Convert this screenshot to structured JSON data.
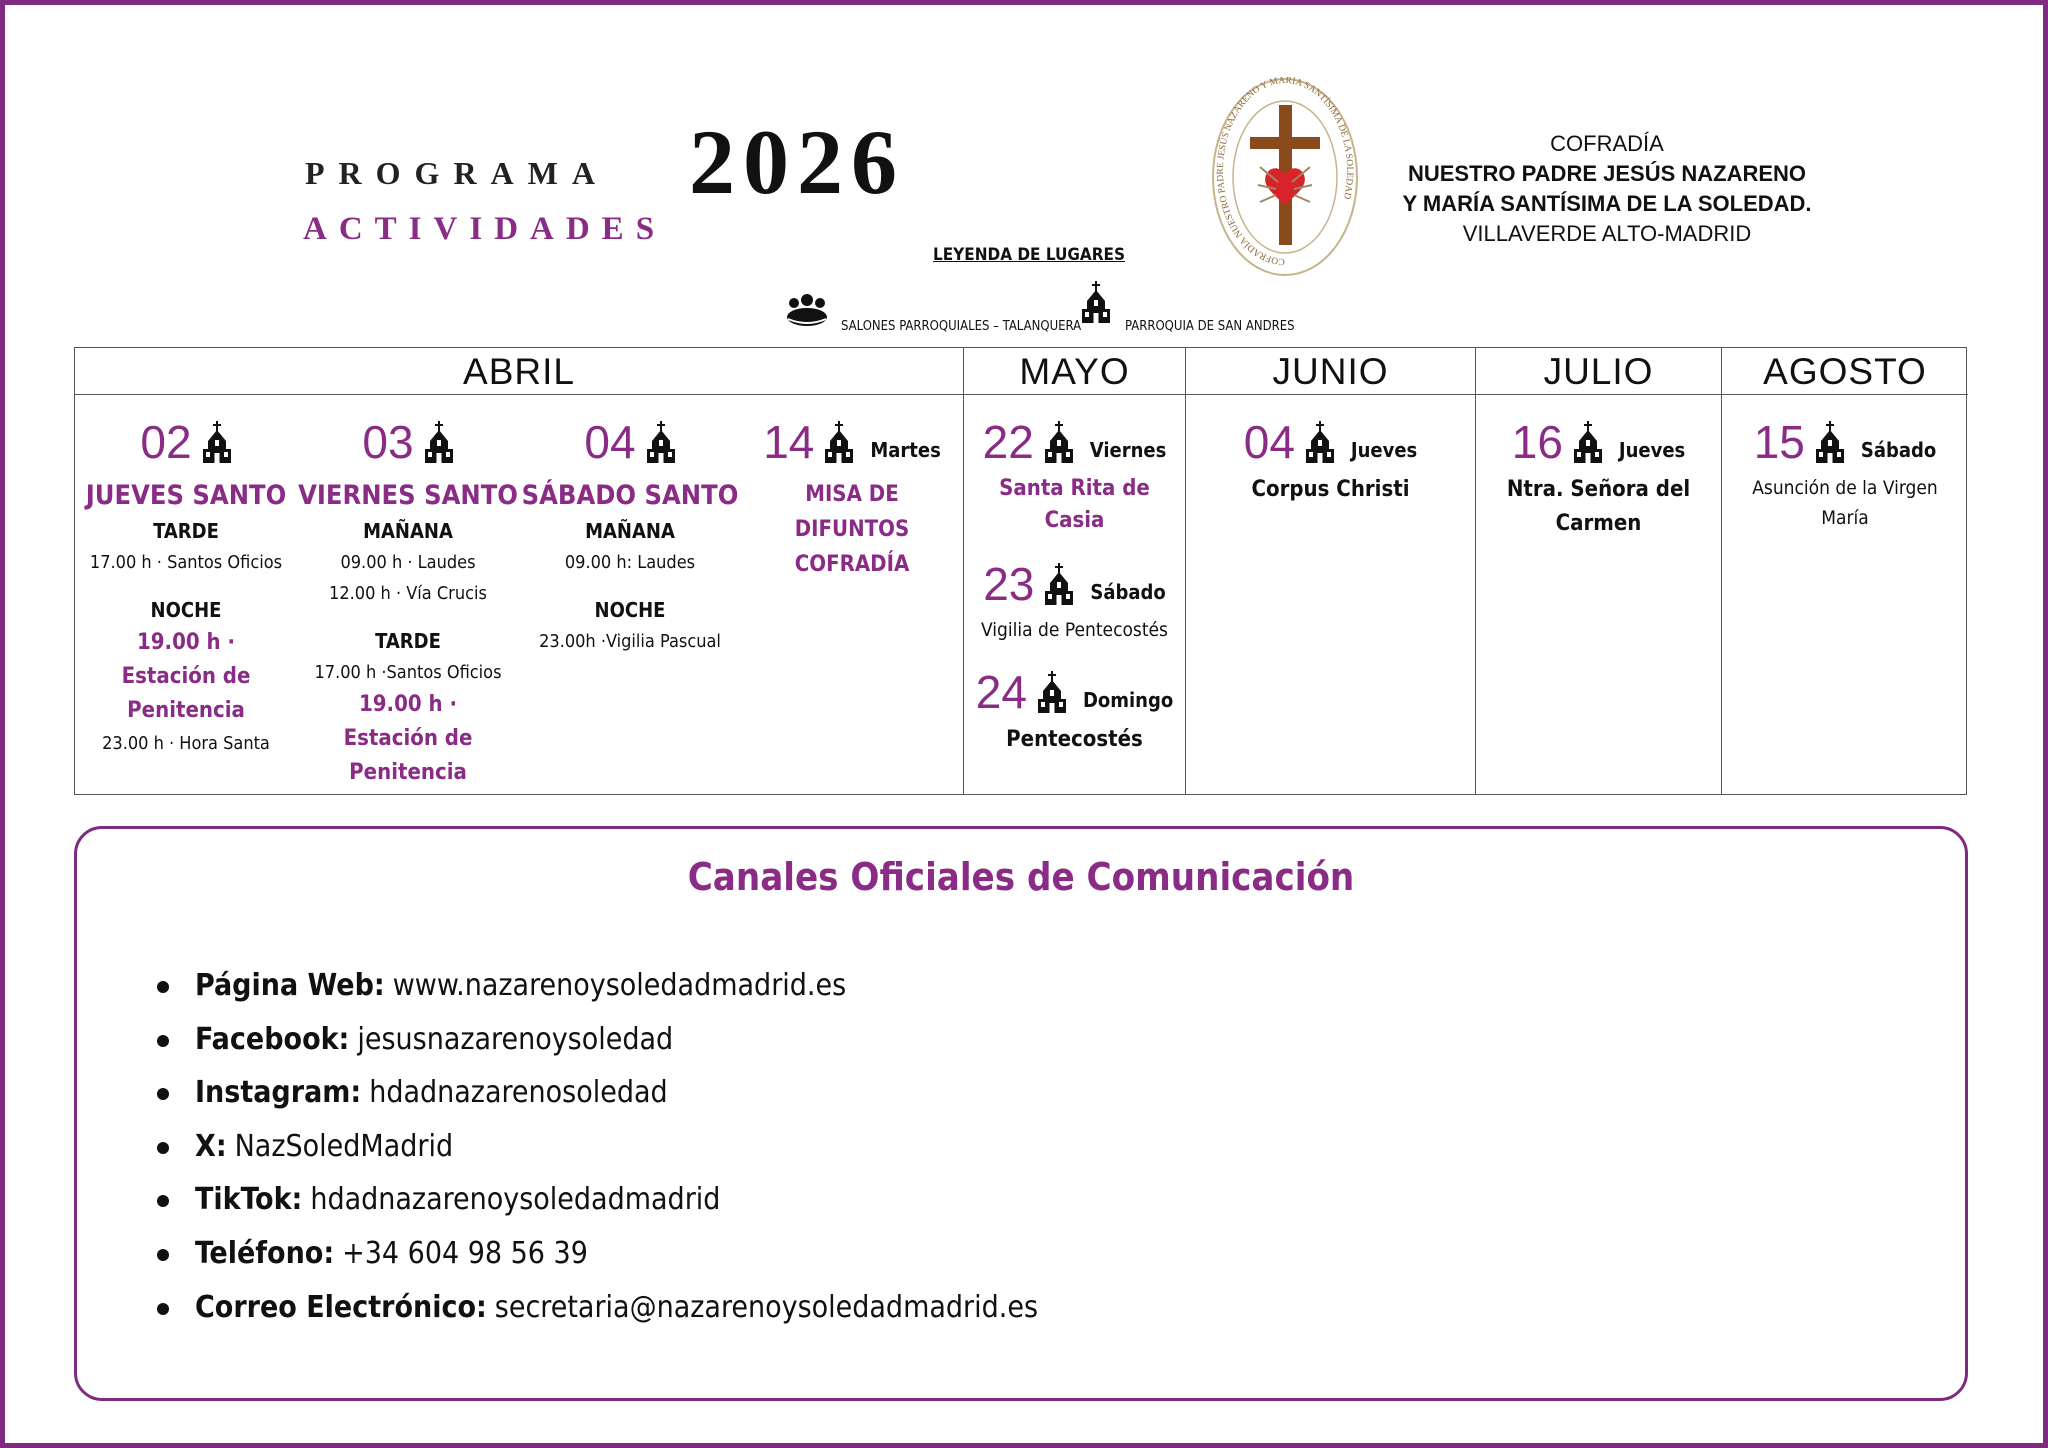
{
  "header": {
    "programa": "PROGRAMA",
    "year": "2026",
    "actividades": "ACTIVIDADES"
  },
  "logo": {
    "ring_text": "COFRADÍA NUESTRO PADRE JESÚS NAZARENO Y MARÍA SANTÍSIMA DE LA SOLEDAD"
  },
  "brotherhood": {
    "lines": [
      "COFRADÍA",
      "NUESTRO PADRE JESÚS NAZARENO",
      "Y MARÍA SANTÍSIMA DE LA SOLEDAD.",
      "VILLAVERDE ALTO-MADRID"
    ]
  },
  "legend": {
    "title": "LEYENDA DE LUGARES",
    "items": [
      {
        "icon": "people",
        "label": "SALONES PARROQUIALES – TALANQUERA"
      },
      {
        "icon": "church",
        "label": "PARROQUIA DE SAN ANDRES"
      }
    ]
  },
  "calendar": {
    "months": [
      {
        "name": "ABRIL",
        "layout": "columns",
        "events": [
          {
            "day": "02",
            "title": "JUEVES SANTO",
            "title_style": "heading",
            "lines": [
              {
                "text": "TARDE",
                "style": "section"
              },
              {
                "text": "17.00 h · Santos Oficios",
                "style": "plain"
              },
              {
                "text": "NOCHE",
                "style": "section"
              },
              {
                "text": "19.00 h · Estación de Penitencia",
                "style": "highlight"
              },
              {
                "text": "23.00 h · Hora Santa",
                "style": "plain"
              }
            ]
          },
          {
            "day": "03",
            "title": "VIERNES SANTO",
            "title_style": "heading",
            "lines": [
              {
                "text": "MAÑANA",
                "style": "section"
              },
              {
                "text": "09.00 h · Laudes",
                "style": "plain"
              },
              {
                "text": "12.00 h · Vía Crucis",
                "style": "plain"
              },
              {
                "text": "TARDE",
                "style": "section"
              },
              {
                "text": "17.00 h ·Santos Oficios",
                "style": "plain"
              },
              {
                "text": "19.00 h · Estación de Penitencia",
                "style": "highlight"
              }
            ]
          },
          {
            "day": "04",
            "title": "SÁBADO SANTO",
            "title_style": "heading",
            "lines": [
              {
                "text": "MAÑANA",
                "style": "section"
              },
              {
                "text": "09.00 h: Laudes",
                "style": "plain"
              },
              {
                "text": "NOCHE",
                "style": "section"
              },
              {
                "text": "23.00h ·Vigilia Pascual",
                "style": "plain"
              }
            ]
          },
          {
            "day": "14",
            "weekday": "Martes",
            "title": "MISA DE DIFUNTOS COFRADÍA",
            "title_style": "highlight-caps"
          }
        ]
      },
      {
        "name": "MAYO",
        "layout": "stack",
        "events": [
          {
            "day": "22",
            "weekday": "Viernes",
            "title": "Santa Rita de Casia",
            "title_style": "highlight"
          },
          {
            "day": "23",
            "weekday": "Sábado",
            "title": "Vigilia de Pentecostés",
            "title_style": "plain"
          },
          {
            "day": "24",
            "weekday": "Domingo",
            "title": "Pentecostés",
            "title_style": "bold"
          }
        ]
      },
      {
        "name": "JUNIO",
        "layout": "stack",
        "events": [
          {
            "day": "04",
            "weekday": "Jueves",
            "title": "Corpus Christi",
            "title_style": "bold"
          }
        ]
      },
      {
        "name": "JULIO",
        "layout": "stack",
        "events": [
          {
            "day": "16",
            "weekday": "Jueves",
            "title": "Ntra. Señora del Carmen",
            "title_style": "bold"
          }
        ]
      },
      {
        "name": "AGOSTO",
        "layout": "stack",
        "events": [
          {
            "day": "15",
            "weekday": "Sábado",
            "title": "Asunción de la Virgen María",
            "title_style": "plain"
          }
        ]
      }
    ]
  },
  "channels": {
    "title": "Canales Oficiales de Comunicación",
    "items": [
      {
        "label": "Página Web:",
        "value": "www.nazarenoysoledadmadrid.es"
      },
      {
        "label": "Facebook:",
        "value": "jesusnazarenoysoledad"
      },
      {
        "label": "Instagram:",
        "value": "hdadnazarenosoledad"
      },
      {
        "label": "X:",
        "value": "NazSoledMadrid"
      },
      {
        "label": "TikTok:",
        "value": "hdadnazarenoysoledadmadrid"
      },
      {
        "label": "Teléfono:",
        "value": "+34 604 98 56 39"
      },
      {
        "label": "Correo Electrónico:",
        "value": "secretaria@nazarenoysoledadmadrid.es"
      }
    ]
  }
}
